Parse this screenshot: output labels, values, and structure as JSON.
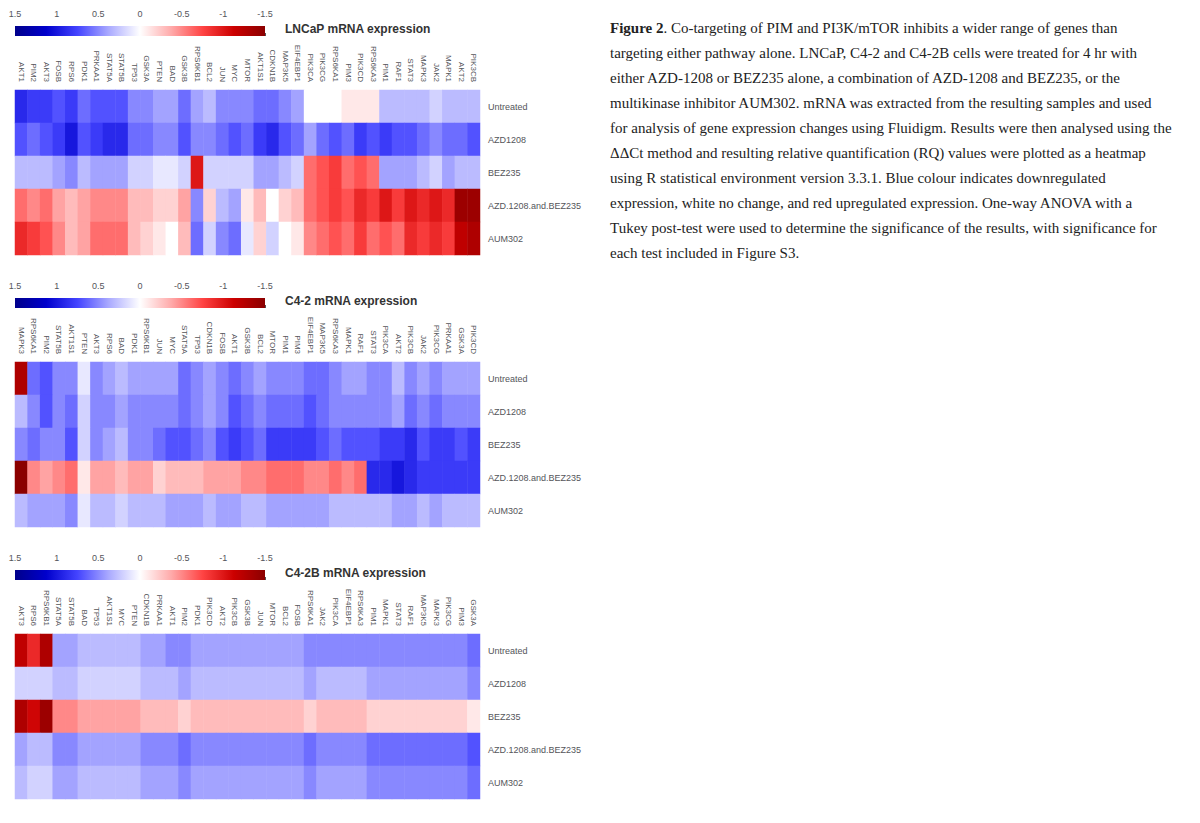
{
  "chart_data": [
    {
      "type": "heatmap",
      "title": "LNCaP mRNA expression",
      "categories": [
        "AKT1",
        "PIM2",
        "AKT3",
        "FOSB",
        "RPS6",
        "PDK1",
        "PRKAA1",
        "STAT5A",
        "STAT5B",
        "TP53",
        "GSK3A",
        "PTEN",
        "BAD",
        "GSK3B",
        "RPS6KB1",
        "BCL2",
        "JUN",
        "MYC",
        "MTOR",
        "AKT1S1",
        "CDKN1B",
        "MAP3K5",
        "EIF4EBP1",
        "PIK3CA",
        "PIK3CG",
        "RPS6KA1",
        "PIM3",
        "PIK3CD",
        "RPS6KA3",
        "PIM1",
        "RAF1",
        "STAT3",
        "MAPK3",
        "JAK2",
        "MAPK1",
        "AKT2",
        "PIK3CB"
      ],
      "series": [
        {
          "name": "Untreated",
          "values": [
            0.9,
            0.8,
            0.8,
            0.7,
            0.8,
            0.6,
            0.7,
            0.7,
            0.7,
            0.5,
            0.5,
            0.4,
            0.4,
            0.6,
            0.4,
            0.3,
            0.5,
            0.5,
            0.5,
            0.6,
            0.6,
            0.5,
            0.4,
            0.0,
            0.0,
            0.0,
            -0.1,
            -0.1,
            -0.1,
            0.3,
            0.3,
            0.3,
            0.3,
            0.2,
            0.3,
            0.3,
            0.3
          ]
        },
        {
          "name": "AZD1208",
          "values": [
            0.7,
            0.6,
            0.7,
            0.8,
            1.0,
            0.7,
            0.8,
            0.9,
            0.9,
            0.6,
            0.6,
            0.5,
            0.5,
            0.7,
            0.5,
            0.5,
            0.6,
            0.7,
            0.6,
            0.8,
            0.9,
            0.7,
            0.6,
            0.4,
            0.6,
            0.7,
            0.6,
            0.8,
            0.7,
            0.8,
            0.7,
            0.7,
            0.6,
            0.5,
            0.6,
            0.6,
            0.7
          ]
        },
        {
          "name": "BEZ235",
          "values": [
            0.3,
            0.3,
            0.3,
            0.4,
            0.5,
            0.3,
            0.4,
            0.4,
            0.4,
            0.2,
            0.2,
            0.1,
            0.1,
            0.2,
            -1.0,
            0.2,
            0.2,
            0.2,
            0.2,
            0.4,
            0.4,
            0.3,
            0.2,
            -0.6,
            -0.7,
            -0.8,
            -0.6,
            -0.7,
            -0.6,
            0.4,
            0.4,
            0.4,
            0.3,
            0.2,
            0.4,
            0.3,
            0.3
          ]
        },
        {
          "name": "AZD.1208.and.BEZ235",
          "values": [
            -0.6,
            -0.5,
            -0.6,
            -0.4,
            -0.3,
            -0.4,
            -0.5,
            -0.5,
            -0.5,
            -0.3,
            -0.3,
            -0.2,
            -0.2,
            -0.4,
            0.5,
            -0.2,
            0.3,
            0.4,
            -0.1,
            -0.3,
            0.0,
            -0.2,
            -0.3,
            -0.6,
            -0.7,
            -0.8,
            -0.7,
            -0.9,
            -0.8,
            -1.0,
            -0.8,
            -1.0,
            -0.9,
            -1.0,
            -0.9,
            -1.4,
            -1.4
          ]
        },
        {
          "name": "AUM302",
          "values": [
            -0.9,
            -0.8,
            -0.7,
            -0.5,
            -0.3,
            -0.4,
            -0.6,
            -0.6,
            -0.6,
            -0.3,
            -0.2,
            -0.1,
            0.0,
            -0.3,
            0.6,
            0.2,
            0.5,
            0.6,
            0.1,
            -0.2,
            0.2,
            0.0,
            -0.1,
            -0.5,
            -0.6,
            -0.7,
            -0.6,
            -0.8,
            -0.6,
            -0.7,
            -0.6,
            -0.9,
            -0.8,
            -0.9,
            -0.8,
            -1.2,
            -1.3
          ]
        }
      ],
      "colorbar_range": [
        -1.5,
        1.5
      ],
      "colorbar_ticks": [
        1.5,
        1,
        0.5,
        0,
        -0.5,
        -1,
        -1.5
      ],
      "colors": [
        "#8B0000",
        "#CC0000",
        "#FF4444",
        "#FFAAAA",
        "#FFFFFF",
        "#AAAAFF",
        "#4444FF",
        "#0000CC",
        "#00008B"
      ]
    },
    {
      "type": "heatmap",
      "title": "C4-2 mRNA expression",
      "categories": [
        "MAPK3",
        "RPS6KA1",
        "PIM2",
        "STAT5B",
        "AKT1S1",
        "PTEN",
        "AKT3",
        "RPS6",
        "BAD",
        "PDK1",
        "RPS6KB1",
        "JUN",
        "MYC",
        "STAT5A",
        "TP53",
        "CDKN1B",
        "FOSB",
        "AKT1",
        "GSK3B",
        "BCL2",
        "MTOR",
        "PIM1",
        "PIM3",
        "EIF4EBP1",
        "MAP3K5",
        "RPS6KA3",
        "MAPK1",
        "RAF1",
        "STAT3",
        "PIK3CA",
        "AKT2",
        "PIK3CB",
        "JAK2",
        "PIK3CG",
        "PRKAA1",
        "GSK3A",
        "PIK3CD"
      ],
      "series": [
        {
          "name": "Untreated",
          "values": [
            -1.3,
            0.6,
            0.7,
            0.5,
            0.5,
            0.1,
            0.5,
            0.4,
            0.3,
            0.4,
            0.4,
            0.4,
            0.4,
            0.6,
            0.5,
            0.4,
            0.5,
            0.6,
            0.5,
            0.4,
            0.5,
            0.5,
            0.5,
            0.6,
            0.6,
            0.5,
            0.4,
            0.4,
            0.5,
            0.5,
            0.3,
            0.5,
            0.4,
            0.5,
            0.4,
            0.4,
            0.4
          ]
        },
        {
          "name": "AZD1208",
          "values": [
            0.3,
            0.5,
            0.7,
            0.5,
            0.6,
            0.2,
            0.5,
            0.5,
            0.4,
            0.5,
            0.5,
            0.5,
            0.5,
            0.6,
            0.5,
            0.4,
            0.5,
            0.7,
            0.6,
            0.5,
            0.6,
            0.6,
            0.6,
            0.7,
            0.6,
            0.5,
            0.5,
            0.5,
            0.5,
            0.5,
            0.4,
            0.6,
            0.5,
            0.6,
            0.5,
            0.5,
            0.5
          ]
        },
        {
          "name": "BEZ235",
          "values": [
            0.5,
            0.6,
            0.5,
            0.5,
            0.7,
            0.2,
            0.5,
            0.4,
            0.3,
            0.5,
            0.5,
            0.6,
            0.7,
            0.7,
            0.6,
            0.5,
            0.7,
            0.8,
            0.7,
            0.6,
            0.8,
            0.8,
            0.8,
            0.8,
            0.7,
            0.6,
            0.7,
            0.7,
            0.7,
            0.8,
            0.8,
            0.9,
            0.7,
            0.8,
            0.8,
            0.7,
            0.8
          ]
        },
        {
          "name": "AZD.1208.and.BEZ235",
          "values": [
            -1.5,
            -0.5,
            -0.4,
            -0.5,
            -0.6,
            -0.1,
            -0.4,
            -0.4,
            -0.3,
            -0.4,
            -0.4,
            -0.2,
            -0.3,
            -0.3,
            -0.3,
            -0.4,
            -0.4,
            -0.4,
            -0.5,
            -0.5,
            -0.6,
            -0.6,
            -0.6,
            -0.5,
            -0.5,
            -0.6,
            -0.5,
            -0.6,
            0.9,
            0.9,
            1.0,
            0.9,
            0.8,
            0.8,
            0.8,
            0.8,
            0.8
          ]
        },
        {
          "name": "AUM302",
          "values": [
            0.3,
            0.4,
            0.4,
            0.4,
            0.5,
            0.1,
            0.3,
            0.3,
            0.2,
            0.3,
            0.3,
            0.3,
            0.4,
            0.4,
            0.4,
            0.3,
            0.4,
            0.4,
            0.3,
            0.3,
            0.4,
            0.4,
            0.4,
            0.4,
            0.4,
            0.3,
            0.3,
            0.3,
            0.3,
            0.3,
            0.4,
            0.4,
            0.3,
            0.4,
            0.3,
            0.3,
            0.3
          ]
        }
      ],
      "colorbar_range": [
        -1.5,
        1.5
      ],
      "colorbar_ticks": [
        1.5,
        1,
        0.5,
        0,
        -0.5,
        -1,
        -1.5
      ],
      "colors": [
        "#8B0000",
        "#CC0000",
        "#FF4444",
        "#FFAAAA",
        "#FFFFFF",
        "#AAAAFF",
        "#4444FF",
        "#0000CC",
        "#00008B"
      ]
    },
    {
      "type": "heatmap",
      "title": "C4-2B mRNA expression",
      "categories": [
        "AKT3",
        "RPS6",
        "RPS6KB1",
        "STAT5A",
        "STAT5B",
        "BAD",
        "TP53",
        "AKT1S1",
        "MYC",
        "PTEN",
        "CDKN1B",
        "PRKAA1",
        "AKT1",
        "PIM2",
        "PDK1",
        "PIK3CD",
        "AKT2",
        "PIK3CB",
        "GSK3B",
        "JUN",
        "MTOR",
        "BCL2",
        "FOSB",
        "RPS6KA1",
        "JAK2",
        "PIK3CA",
        "EIF4EBP1",
        "RPS6KA3",
        "PIM1",
        "MAPK1",
        "STAT3",
        "RAF1",
        "MAP3K5",
        "MAPK3",
        "PIK3CG",
        "PIM3",
        "GSK3A"
      ],
      "series": [
        {
          "name": "Untreated",
          "values": [
            -1.2,
            -0.9,
            -1.3,
            0.4,
            0.4,
            0.3,
            0.3,
            0.3,
            0.3,
            0.3,
            0.4,
            0.4,
            0.5,
            0.5,
            0.4,
            0.4,
            0.4,
            0.4,
            0.4,
            0.4,
            0.4,
            0.4,
            0.4,
            0.5,
            0.5,
            0.5,
            0.5,
            0.5,
            0.5,
            0.5,
            0.5,
            0.5,
            0.5,
            0.5,
            0.5,
            0.5,
            0.6
          ]
        },
        {
          "name": "AZD1208",
          "values": [
            0.2,
            0.2,
            0.2,
            0.3,
            0.3,
            0.2,
            0.2,
            0.2,
            0.2,
            0.2,
            0.3,
            0.3,
            0.3,
            0.4,
            0.3,
            0.3,
            0.3,
            0.3,
            0.3,
            0.3,
            0.3,
            0.3,
            0.3,
            0.4,
            0.3,
            0.3,
            0.3,
            0.3,
            0.4,
            0.4,
            0.4,
            0.4,
            0.4,
            0.4,
            0.4,
            0.4,
            0.5
          ]
        },
        {
          "name": "BEZ235",
          "values": [
            -1.3,
            -1.1,
            -1.4,
            -0.5,
            -0.5,
            -0.4,
            -0.4,
            -0.4,
            -0.4,
            -0.4,
            -0.3,
            -0.3,
            -0.3,
            -0.2,
            -0.3,
            -0.3,
            -0.3,
            -0.3,
            -0.3,
            -0.3,
            -0.3,
            -0.3,
            -0.3,
            -0.2,
            -0.3,
            -0.3,
            -0.3,
            -0.3,
            -0.2,
            -0.2,
            -0.2,
            -0.2,
            -0.2,
            -0.2,
            -0.2,
            -0.2,
            -0.1
          ]
        },
        {
          "name": "AZD.1208.and.BEZ235",
          "values": [
            0.4,
            0.3,
            0.3,
            0.5,
            0.5,
            0.4,
            0.4,
            0.4,
            0.4,
            0.4,
            0.5,
            0.5,
            0.5,
            0.6,
            0.5,
            0.5,
            0.5,
            0.5,
            0.5,
            0.5,
            0.5,
            0.5,
            0.5,
            0.6,
            0.5,
            0.5,
            0.5,
            0.5,
            0.6,
            0.6,
            0.6,
            0.6,
            0.6,
            0.6,
            0.6,
            0.6,
            0.7
          ]
        },
        {
          "name": "AUM302",
          "values": [
            0.3,
            0.2,
            0.2,
            0.4,
            0.4,
            0.3,
            0.3,
            0.3,
            0.3,
            0.3,
            0.4,
            0.4,
            0.4,
            0.5,
            0.4,
            0.4,
            0.4,
            0.4,
            0.4,
            0.4,
            0.4,
            0.4,
            0.4,
            0.5,
            0.4,
            0.4,
            0.4,
            0.4,
            0.5,
            0.5,
            0.5,
            0.5,
            0.5,
            0.5,
            0.5,
            0.5,
            0.6
          ]
        }
      ],
      "colorbar_range": [
        -1.5,
        1.5
      ],
      "colorbar_ticks": [
        1.5,
        1,
        0.5,
        0,
        -0.5,
        -1,
        -1.5
      ],
      "colors": [
        "#8B0000",
        "#CC0000",
        "#FF4444",
        "#FFAAAA",
        "#FFFFFF",
        "#AAAAFF",
        "#4444FF",
        "#0000CC",
        "#00008B"
      ]
    }
  ],
  "annotations": [
    "Figure 2",
    ". Co-targeting of PIM and PI3K/mTOR inhibits a wider range of genes than targeting either pathway alone. LNCaP, C4-2 and C4-2B cells were treated for 4 hr with either AZD-1208 or BEZ235 alone, a combination of AZD-1208 and BEZ235, or the multikinase inhibitor AUM302. mRNA was extracted from the resulting samples and used for analysis of gene expression changes using Fluidigm. Results were then analysed using the ΔΔCt method and resulting relative quantification (RQ) values were plotted as a heatmap using R statistical environment version 3.3.1. Blue colour indicates downregulated expression, white no change, and red upregulated expression. One-way ANOVA with a Tukey post-test were used to determine the significance of the results, with significance for each test included in Figure S3."
  ]
}
